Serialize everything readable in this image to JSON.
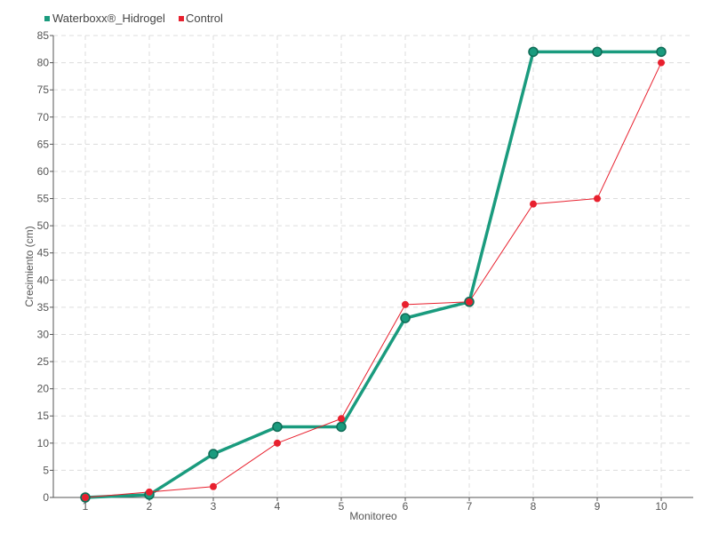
{
  "chart_data": {
    "type": "line",
    "title": "",
    "xlabel": "Monitoreo",
    "ylabel": "Crecimiento (cm)",
    "x": [
      1,
      2,
      3,
      4,
      5,
      6,
      7,
      8,
      9,
      10
    ],
    "x_tick_labels": [
      "1",
      "2",
      "3",
      "4",
      "5",
      "6",
      "7",
      "8",
      "9",
      "10"
    ],
    "ylim": [
      0,
      85
    ],
    "y_ticks": [
      0,
      5,
      10,
      15,
      20,
      25,
      30,
      35,
      40,
      45,
      50,
      55,
      60,
      65,
      70,
      75,
      80,
      85
    ],
    "grid": true,
    "legend_position": "top-left",
    "series": [
      {
        "name": "Waterboxx®_Hidrogel",
        "color": "#1a9b7e",
        "values": [
          0,
          0.5,
          8,
          13,
          13,
          33,
          36,
          82,
          82,
          82
        ]
      },
      {
        "name": "Control",
        "color": "#e8202e",
        "values": [
          0,
          1,
          2,
          10,
          14.5,
          35.5,
          36,
          54,
          55,
          80
        ]
      }
    ]
  }
}
